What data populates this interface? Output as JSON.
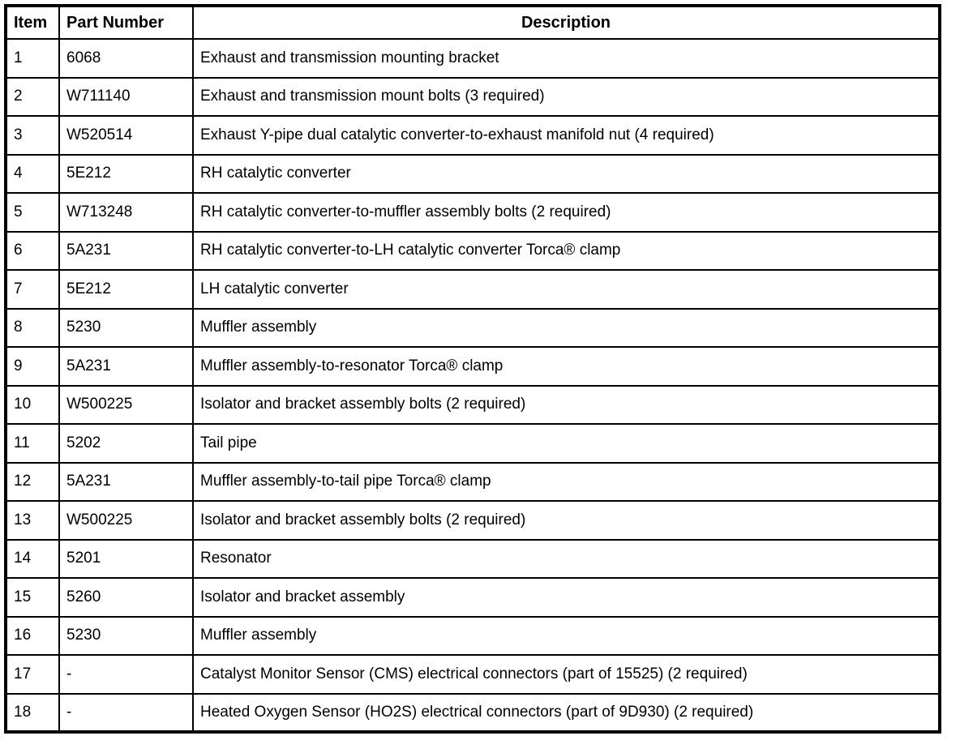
{
  "table": {
    "headers": [
      "Item",
      "Part Number",
      "Description"
    ],
    "rows": [
      [
        "1",
        "6068",
        "Exhaust and transmission mounting bracket"
      ],
      [
        "2",
        "W711140",
        "Exhaust and transmission mount bolts (3 required)"
      ],
      [
        "3",
        "W520514",
        "Exhaust Y-pipe dual catalytic converter-to-exhaust manifold nut (4 required)"
      ],
      [
        "4",
        "5E212",
        "RH catalytic converter"
      ],
      [
        "5",
        "W713248",
        "RH catalytic converter-to-muffler assembly bolts (2 required)"
      ],
      [
        "6",
        "5A231",
        "RH catalytic converter-to-LH catalytic converter Torca® clamp"
      ],
      [
        "7",
        "5E212",
        "LH catalytic converter"
      ],
      [
        "8",
        "5230",
        "Muffler assembly"
      ],
      [
        "9",
        "5A231",
        "Muffler assembly-to-resonator Torca® clamp"
      ],
      [
        "10",
        "W500225",
        "Isolator and bracket assembly bolts (2 required)"
      ],
      [
        "11",
        "5202",
        "Tail pipe"
      ],
      [
        "12",
        "5A231",
        "Muffler assembly-to-tail pipe Torca® clamp"
      ],
      [
        "13",
        "W500225",
        "Isolator and bracket assembly bolts (2 required)"
      ],
      [
        "14",
        "5201",
        "Resonator"
      ],
      [
        "15",
        "5260",
        "Isolator and bracket assembly"
      ],
      [
        "16",
        "5230",
        "Muffler assembly"
      ],
      [
        "17",
        "-",
        "Catalyst Monitor Sensor (CMS) electrical connectors (part of 15525) (2 required)"
      ],
      [
        "18",
        "-",
        "Heated Oxygen Sensor (HO2S) electrical connectors (part of 9D930) (2 required)"
      ]
    ]
  }
}
